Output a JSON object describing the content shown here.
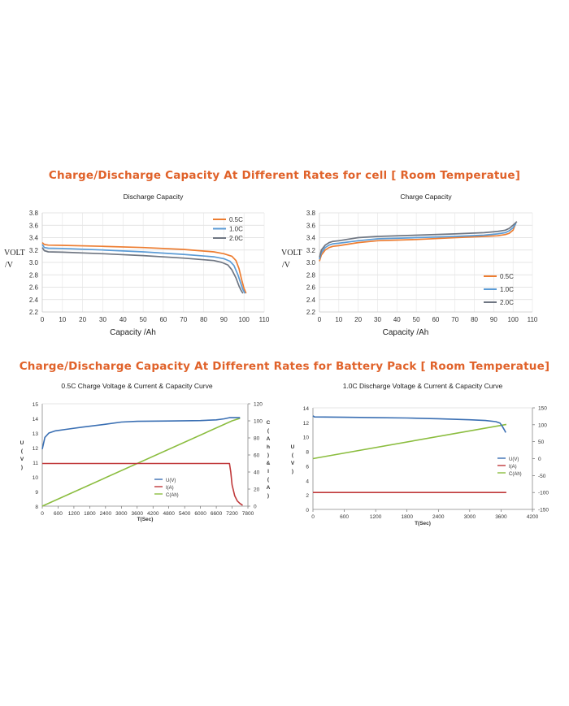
{
  "titles": {
    "cell": "Charge/Discharge Capacity At Different Rates for cell [ Room Temperatue]",
    "pack": "Charge/Discharge Capacity At Different Rates for Battery Pack [ Room Temperatue]"
  },
  "chart_data": [
    {
      "type": "line",
      "title": "Discharge Capacity",
      "xlabel": "Capacity /Ah",
      "ylabel": "VOLT /V",
      "xlim": [
        0,
        110
      ],
      "ylim": [
        2.2,
        3.8
      ],
      "xticks": [
        "0",
        "10",
        "20",
        "30",
        "40",
        "50",
        "60",
        "70",
        "80",
        "90",
        "100",
        "110"
      ],
      "yticks": [
        "2.2",
        "2.4",
        "2.6",
        "2.8",
        "3.0",
        "3.2",
        "3.4",
        "3.6",
        "3.8"
      ],
      "grid": true,
      "legend_position": "top-right",
      "colors": {
        "0.5C": "#ed7d31",
        "1.0C": "#5b9bd5",
        "2.0C": "#6f7682"
      },
      "series": [
        {
          "name": "0.5C",
          "x": [
            0,
            1,
            3,
            10,
            30,
            50,
            70,
            85,
            90,
            94,
            96,
            97.5,
            99,
            100,
            101
          ],
          "y": [
            3.32,
            3.29,
            3.28,
            3.275,
            3.26,
            3.24,
            3.21,
            3.17,
            3.14,
            3.1,
            3.03,
            2.9,
            2.7,
            2.58,
            2.5
          ]
        },
        {
          "name": "1.0C",
          "x": [
            0,
            1,
            3,
            10,
            30,
            50,
            70,
            85,
            90,
            93,
            95,
            97,
            98.5,
            99.5,
            100.5
          ],
          "y": [
            3.29,
            3.24,
            3.23,
            3.225,
            3.2,
            3.17,
            3.13,
            3.09,
            3.06,
            3.02,
            2.95,
            2.8,
            2.65,
            2.56,
            2.5
          ]
        },
        {
          "name": "2.0C",
          "x": [
            0,
            1,
            3,
            10,
            30,
            50,
            70,
            85,
            89,
            92,
            94,
            96,
            97.5,
            98.5,
            99.5
          ],
          "y": [
            3.24,
            3.19,
            3.17,
            3.165,
            3.14,
            3.11,
            3.07,
            3.03,
            3.0,
            2.96,
            2.88,
            2.75,
            2.62,
            2.55,
            2.5
          ]
        }
      ]
    },
    {
      "type": "line",
      "title": "Charge Capacity",
      "xlabel": "Capacity /Ah",
      "ylabel": "VOLT /V",
      "xlim": [
        0,
        110
      ],
      "ylim": [
        2.2,
        3.8
      ],
      "xticks": [
        "0",
        "10",
        "20",
        "30",
        "40",
        "50",
        "60",
        "70",
        "80",
        "90",
        "100",
        "110"
      ],
      "yticks": [
        "2.2",
        "2.4",
        "2.6",
        "2.8",
        "3.0",
        "3.2",
        "3.4",
        "3.6",
        "3.8"
      ],
      "grid": true,
      "legend_position": "bottom-right",
      "colors": {
        "0.5C": "#ed7d31",
        "1.0C": "#5b9bd5",
        "2.0C": "#6f7682"
      },
      "series": [
        {
          "name": "0.5C",
          "x": [
            0,
            1,
            3,
            5,
            7,
            10,
            20,
            30,
            50,
            70,
            85,
            92,
            96,
            98,
            100,
            101
          ],
          "y": [
            3.02,
            3.12,
            3.2,
            3.24,
            3.26,
            3.27,
            3.32,
            3.35,
            3.37,
            3.4,
            3.42,
            3.43,
            3.45,
            3.47,
            3.52,
            3.6
          ]
        },
        {
          "name": "1.0C",
          "x": [
            0,
            1,
            3,
            5,
            7,
            10,
            20,
            30,
            50,
            70,
            85,
            92,
            96,
            98,
            100,
            101.5
          ],
          "y": [
            3.05,
            3.16,
            3.24,
            3.28,
            3.3,
            3.31,
            3.35,
            3.38,
            3.4,
            3.42,
            3.44,
            3.46,
            3.48,
            3.51,
            3.56,
            3.63
          ]
        },
        {
          "name": "2.0C",
          "x": [
            0,
            1,
            3,
            5,
            7,
            10,
            20,
            30,
            50,
            70,
            85,
            92,
            96,
            98,
            100,
            102
          ],
          "y": [
            3.08,
            3.2,
            3.28,
            3.32,
            3.34,
            3.35,
            3.4,
            3.42,
            3.44,
            3.46,
            3.48,
            3.5,
            3.52,
            3.55,
            3.6,
            3.66
          ]
        }
      ]
    },
    {
      "type": "line",
      "title": "0.5C Charge Voltage & Current & Capacity Curve",
      "xlabel": "T(Sec)",
      "ylabel": "U(V)",
      "y2label": "C(Ah)&I(A)",
      "xlim": [
        0,
        7800
      ],
      "ylim": [
        8,
        15
      ],
      "y2lim": [
        0,
        120
      ],
      "xticks": [
        "0",
        "600",
        "1200",
        "1800",
        "2400",
        "3000",
        "3600",
        "4200",
        "4800",
        "5400",
        "6000",
        "6600",
        "7200",
        "7800"
      ],
      "yticks": [
        "8",
        "9",
        "10",
        "11",
        "12",
        "13",
        "14",
        "15"
      ],
      "y2ticks": [
        "0",
        "20",
        "40",
        "60",
        "80",
        "100",
        "120"
      ],
      "grid": false,
      "legend_position": "bottom-right",
      "colors": {
        "U(V)": "#3a6fb3",
        "I(A)": "#c0393b",
        "C(Ah)": "#8bbd3f"
      },
      "series": [
        {
          "name": "U(V)",
          "axis": "left",
          "x": [
            0,
            100,
            250,
            500,
            900,
            1500,
            2400,
            3000,
            3600,
            4800,
            6000,
            6600,
            6900,
            7100,
            7500
          ],
          "y": [
            11.9,
            12.7,
            13.0,
            13.15,
            13.25,
            13.4,
            13.6,
            13.75,
            13.8,
            13.82,
            13.85,
            13.9,
            13.97,
            14.05,
            14.05
          ]
        },
        {
          "name": "I(A)",
          "axis": "right",
          "x": [
            0,
            7100,
            7150,
            7200,
            7300,
            7400,
            7500,
            7600
          ],
          "y": [
            50,
            50,
            40,
            25,
            12,
            6,
            3,
            1
          ]
        },
        {
          "name": "C(Ah)",
          "axis": "right",
          "x": [
            0,
            7200,
            7500
          ],
          "y": [
            0,
            100,
            103
          ]
        }
      ]
    },
    {
      "type": "line",
      "title": "1.0C Discharge Voltage & Current & Capacity Curve",
      "xlabel": "T(Sec)",
      "ylabel": "U(V)",
      "xlim": [
        0,
        4200
      ],
      "ylim": [
        0,
        14
      ],
      "y2lim": [
        -150,
        150
      ],
      "xticks": [
        "0",
        "600",
        "1200",
        "1800",
        "2400",
        "3000",
        "3600",
        "4200"
      ],
      "yticks": [
        "0",
        "2",
        "4",
        "6",
        "8",
        "10",
        "12",
        "14"
      ],
      "y2ticks": [
        "-150",
        "-100",
        "-50",
        "0",
        "50",
        "100",
        "150"
      ],
      "grid": false,
      "legend_position": "right",
      "colors": {
        "U(V)": "#3a6fb3",
        "I(A)": "#c0393b",
        "C(Ah)": "#8bbd3f"
      },
      "series": [
        {
          "name": "U(V)",
          "axis": "left",
          "x": [
            0,
            30,
            600,
            1200,
            1800,
            2400,
            3000,
            3300,
            3500,
            3580,
            3620,
            3660,
            3690
          ],
          "y": [
            12.9,
            12.75,
            12.7,
            12.65,
            12.6,
            12.5,
            12.35,
            12.25,
            12.1,
            11.9,
            11.5,
            11.0,
            10.6
          ]
        },
        {
          "name": "I(A)",
          "axis": "right",
          "x": [
            0,
            3700
          ],
          "y": [
            -100,
            -100
          ]
        },
        {
          "name": "C(Ah)",
          "axis": "right",
          "x": [
            0,
            3700
          ],
          "y": [
            0,
            101
          ]
        }
      ]
    }
  ]
}
